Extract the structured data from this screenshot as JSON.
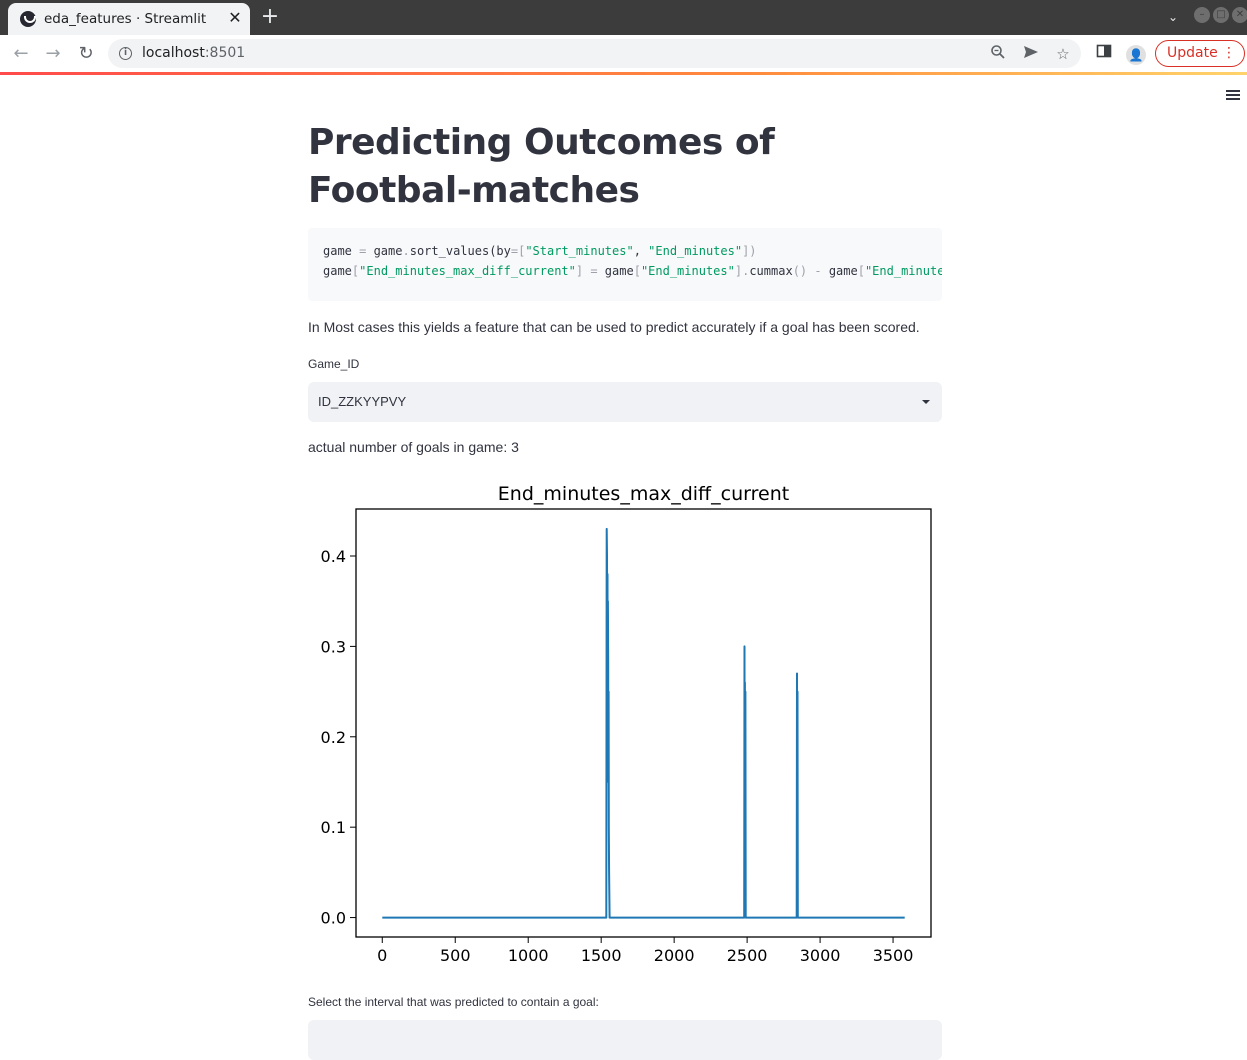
{
  "browser": {
    "tab_title": "eda_features · Streamlit",
    "url_host": "localhost",
    "url_port": ":8501",
    "update_label": "Update"
  },
  "page": {
    "title": "Predicting Outcomes of Footbal-matches",
    "code_line_1": [
      {
        "t": "game ",
        "c": ""
      },
      {
        "t": "=",
        "c": "op"
      },
      {
        "t": " game",
        "c": ""
      },
      {
        "t": ".",
        "c": "op"
      },
      {
        "t": "sort_values(by",
        "c": ""
      },
      {
        "t": "=[",
        "c": "op"
      },
      {
        "t": "\"Start_minutes\"",
        "c": "str"
      },
      {
        "t": ", ",
        "c": ""
      },
      {
        "t": "\"End_minutes\"",
        "c": "str"
      },
      {
        "t": "])",
        "c": "op"
      }
    ],
    "code_line_2": [
      {
        "t": "game",
        "c": ""
      },
      {
        "t": "[",
        "c": "op"
      },
      {
        "t": "\"End_minutes_max_diff_current\"",
        "c": "str"
      },
      {
        "t": "] ",
        "c": "op"
      },
      {
        "t": "=",
        "c": "op"
      },
      {
        "t": " game",
        "c": ""
      },
      {
        "t": "[",
        "c": "op"
      },
      {
        "t": "\"End_minutes\"",
        "c": "str"
      },
      {
        "t": "]",
        "c": "op"
      },
      {
        "t": ".",
        "c": "op"
      },
      {
        "t": "cummax",
        "c": ""
      },
      {
        "t": "() - ",
        "c": "op"
      },
      {
        "t": "game",
        "c": ""
      },
      {
        "t": "[",
        "c": "op"
      },
      {
        "t": "\"End_minutes\"",
        "c": "str"
      },
      {
        "t": "]",
        "c": "op"
      }
    ],
    "caption": "In Most cases this yields a feature that can be used to predict accurately if a goal has been scored.",
    "select_label": "Game_ID",
    "select_value": "ID_ZZKYYPVY",
    "goals_text": "actual number of goals in game: 3",
    "interval_label": "Select the interval that was predicted to contain a goal:"
  },
  "colors": {
    "line": "#1f77b4",
    "text": "#31333f",
    "accent": "#ff4b4b"
  },
  "chart_data": {
    "type": "line",
    "title": "End_minutes_max_diff_current",
    "xlabel": "",
    "ylabel": "",
    "xlim": [
      -180,
      3760
    ],
    "ylim": [
      -0.0215,
      0.452
    ],
    "xticks": [
      0,
      500,
      1000,
      1500,
      2000,
      2500,
      3000,
      3500
    ],
    "yticks": [
      0.0,
      0.1,
      0.2,
      0.3,
      0.4
    ],
    "ytick_labels": [
      "0.0",
      "0.1",
      "0.2",
      "0.3",
      "0.4"
    ],
    "grid": false,
    "x": [
      0,
      1535,
      1538,
      1540,
      1541,
      1543,
      1545,
      1546,
      1548,
      1549,
      1551,
      1552,
      1554,
      1556,
      1558,
      2480,
      2482,
      2483,
      2485,
      2486,
      2488,
      2490,
      2840,
      2842,
      2843,
      2845,
      2847,
      3580
    ],
    "y": [
      0.0,
      0.0,
      0.43,
      0.4,
      0.3,
      0.38,
      0.2,
      0.35,
      0.28,
      0.15,
      0.25,
      0.1,
      0.05,
      0.02,
      0.0,
      0.0,
      0.3,
      0.15,
      0.26,
      0.1,
      0.25,
      0.0,
      0.0,
      0.27,
      0.12,
      0.25,
      0.0,
      0.0
    ]
  }
}
